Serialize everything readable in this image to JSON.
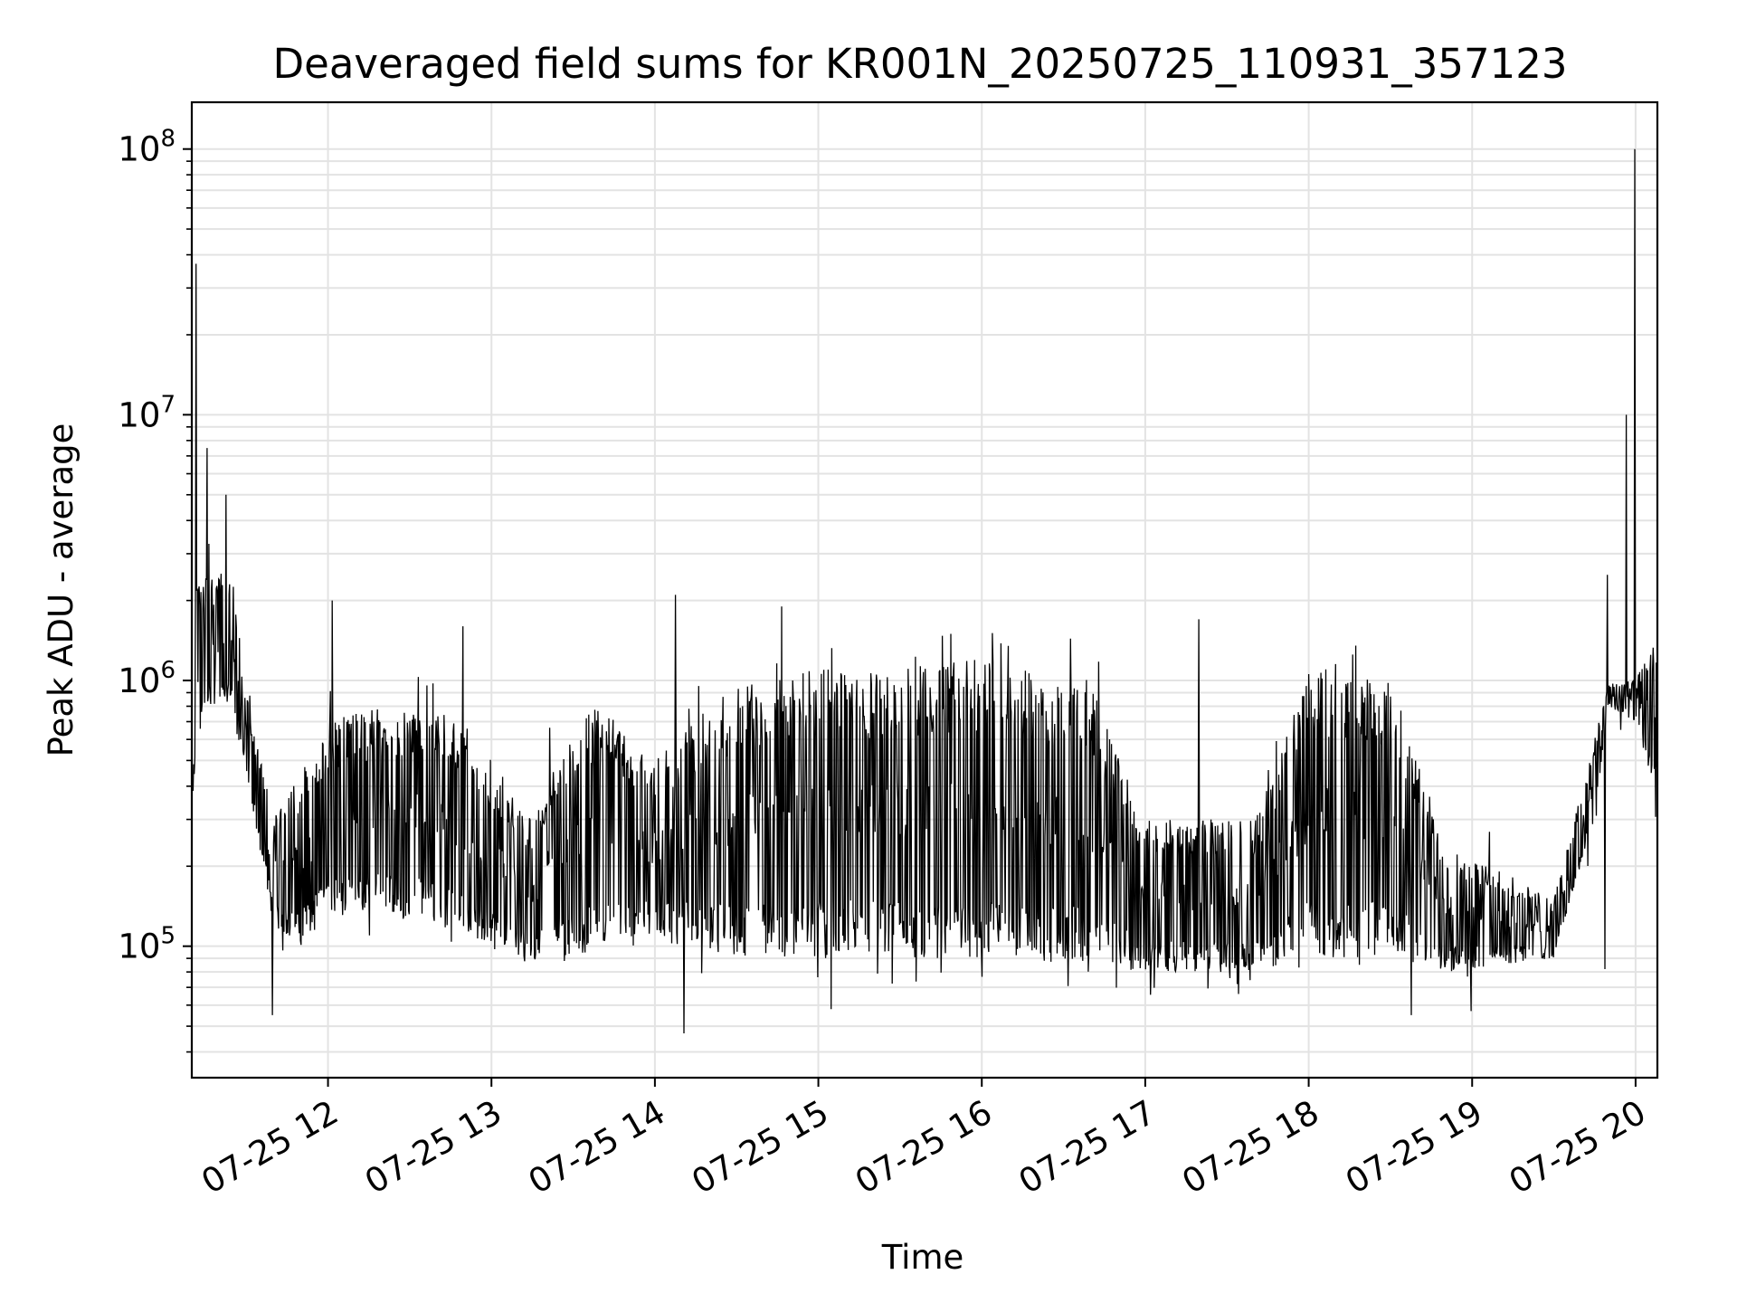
{
  "chart_data": {
    "type": "line",
    "title": "Deaveraged field sums for KR001N_20250725_110931_357123",
    "xlabel": "Time",
    "ylabel": "Peak ADU - average",
    "yscale": "log",
    "xlim": [
      "2025-07-25 11:10",
      "2025-07-25 20:08"
    ],
    "ylim": [
      32000,
      150000000
    ],
    "grid": true,
    "line_color": "#000000",
    "x_ticks": [
      "07-25 12",
      "07-25 13",
      "07-25 14",
      "07-25 15",
      "07-25 16",
      "07-25 17",
      "07-25 18",
      "07-25 19",
      "07-25 20"
    ],
    "y_ticks": [
      {
        "base": "10",
        "exp": "5"
      },
      {
        "base": "10",
        "exp": "6"
      },
      {
        "base": "10",
        "exp": "7"
      },
      {
        "base": "10",
        "exp": "8"
      }
    ],
    "series_profile": [
      {
        "t": "2025-07-25 11:10",
        "lo": 350000,
        "hi": 2500000
      },
      {
        "t": "2025-07-25 11:15",
        "lo": 800000,
        "hi": 2500000
      },
      {
        "t": "2025-07-25 11:25",
        "lo": 800000,
        "hi": 2400000
      },
      {
        "t": "2025-07-25 11:30",
        "lo": 450000,
        "hi": 900000
      },
      {
        "t": "2025-07-25 11:40",
        "lo": 120000,
        "hi": 300000
      },
      {
        "t": "2025-07-25 11:50",
        "lo": 100000,
        "hi": 450000
      },
      {
        "t": "2025-07-25 12:00",
        "lo": 130000,
        "hi": 700000
      },
      {
        "t": "2025-07-25 12:20",
        "lo": 130000,
        "hi": 800000
      },
      {
        "t": "2025-07-25 12:40",
        "lo": 120000,
        "hi": 800000
      },
      {
        "t": "2025-07-25 13:00",
        "lo": 100000,
        "hi": 500000
      },
      {
        "t": "2025-07-25 13:15",
        "lo": 85000,
        "hi": 300000
      },
      {
        "t": "2025-07-25 13:25",
        "lo": 85000,
        "hi": 650000
      },
      {
        "t": "2025-07-25 13:40",
        "lo": 100000,
        "hi": 800000
      },
      {
        "t": "2025-07-25 14:00",
        "lo": 110000,
        "hi": 500000
      },
      {
        "t": "2025-07-25 14:30",
        "lo": 90000,
        "hi": 1000000
      },
      {
        "t": "2025-07-25 15:00",
        "lo": 90000,
        "hi": 1100000
      },
      {
        "t": "2025-07-25 16:00",
        "lo": 90000,
        "hi": 1200000
      },
      {
        "t": "2025-07-25 16:40",
        "lo": 85000,
        "hi": 1000000
      },
      {
        "t": "2025-07-25 17:00",
        "lo": 80000,
        "hi": 300000
      },
      {
        "t": "2025-07-25 17:40",
        "lo": 80000,
        "hi": 300000
      },
      {
        "t": "2025-07-25 18:00",
        "lo": 90000,
        "hi": 1100000
      },
      {
        "t": "2025-07-25 18:30",
        "lo": 90000,
        "hi": 1000000
      },
      {
        "t": "2025-07-25 18:50",
        "lo": 80000,
        "hi": 250000
      },
      {
        "t": "2025-07-25 19:30",
        "lo": 90000,
        "hi": 150000
      },
      {
        "t": "2025-07-25 19:45",
        "lo": 300000,
        "hi": 600000
      },
      {
        "t": "2025-07-25 19:50",
        "lo": 800000,
        "hi": 1000000
      },
      {
        "t": "2025-07-25 20:00",
        "lo": 700000,
        "hi": 1000000
      },
      {
        "t": "2025-07-25 20:08",
        "lo": 350000,
        "hi": 1500000
      }
    ],
    "spikes": [
      {
        "t": "2025-07-25 11:12",
        "v": 37000000
      },
      {
        "t": "2025-07-25 11:16",
        "v": 7500000
      },
      {
        "t": "2025-07-25 11:23",
        "v": 5000000
      },
      {
        "t": "2025-07-25 12:02",
        "v": 2000000
      },
      {
        "t": "2025-07-25 12:50",
        "v": 1600000
      },
      {
        "t": "2025-07-25 14:08",
        "v": 2100000
      },
      {
        "t": "2025-07-25 14:47",
        "v": 1900000
      },
      {
        "t": "2025-07-25 17:20",
        "v": 1700000
      },
      {
        "t": "2025-07-25 19:50",
        "v": 2500000
      },
      {
        "t": "2025-07-25 19:57",
        "v": 10000000
      },
      {
        "t": "2025-07-25 20:00",
        "v": 100000000
      }
    ],
    "dips": [
      {
        "t": "2025-07-25 11:40",
        "v": 55000
      },
      {
        "t": "2025-07-25 14:11",
        "v": 47000
      },
      {
        "t": "2025-07-25 15:05",
        "v": 58000
      },
      {
        "t": "2025-07-25 18:38",
        "v": 55000
      },
      {
        "t": "2025-07-25 19:00",
        "v": 57000
      },
      {
        "t": "2025-07-25 19:49",
        "v": 82000
      }
    ]
  }
}
